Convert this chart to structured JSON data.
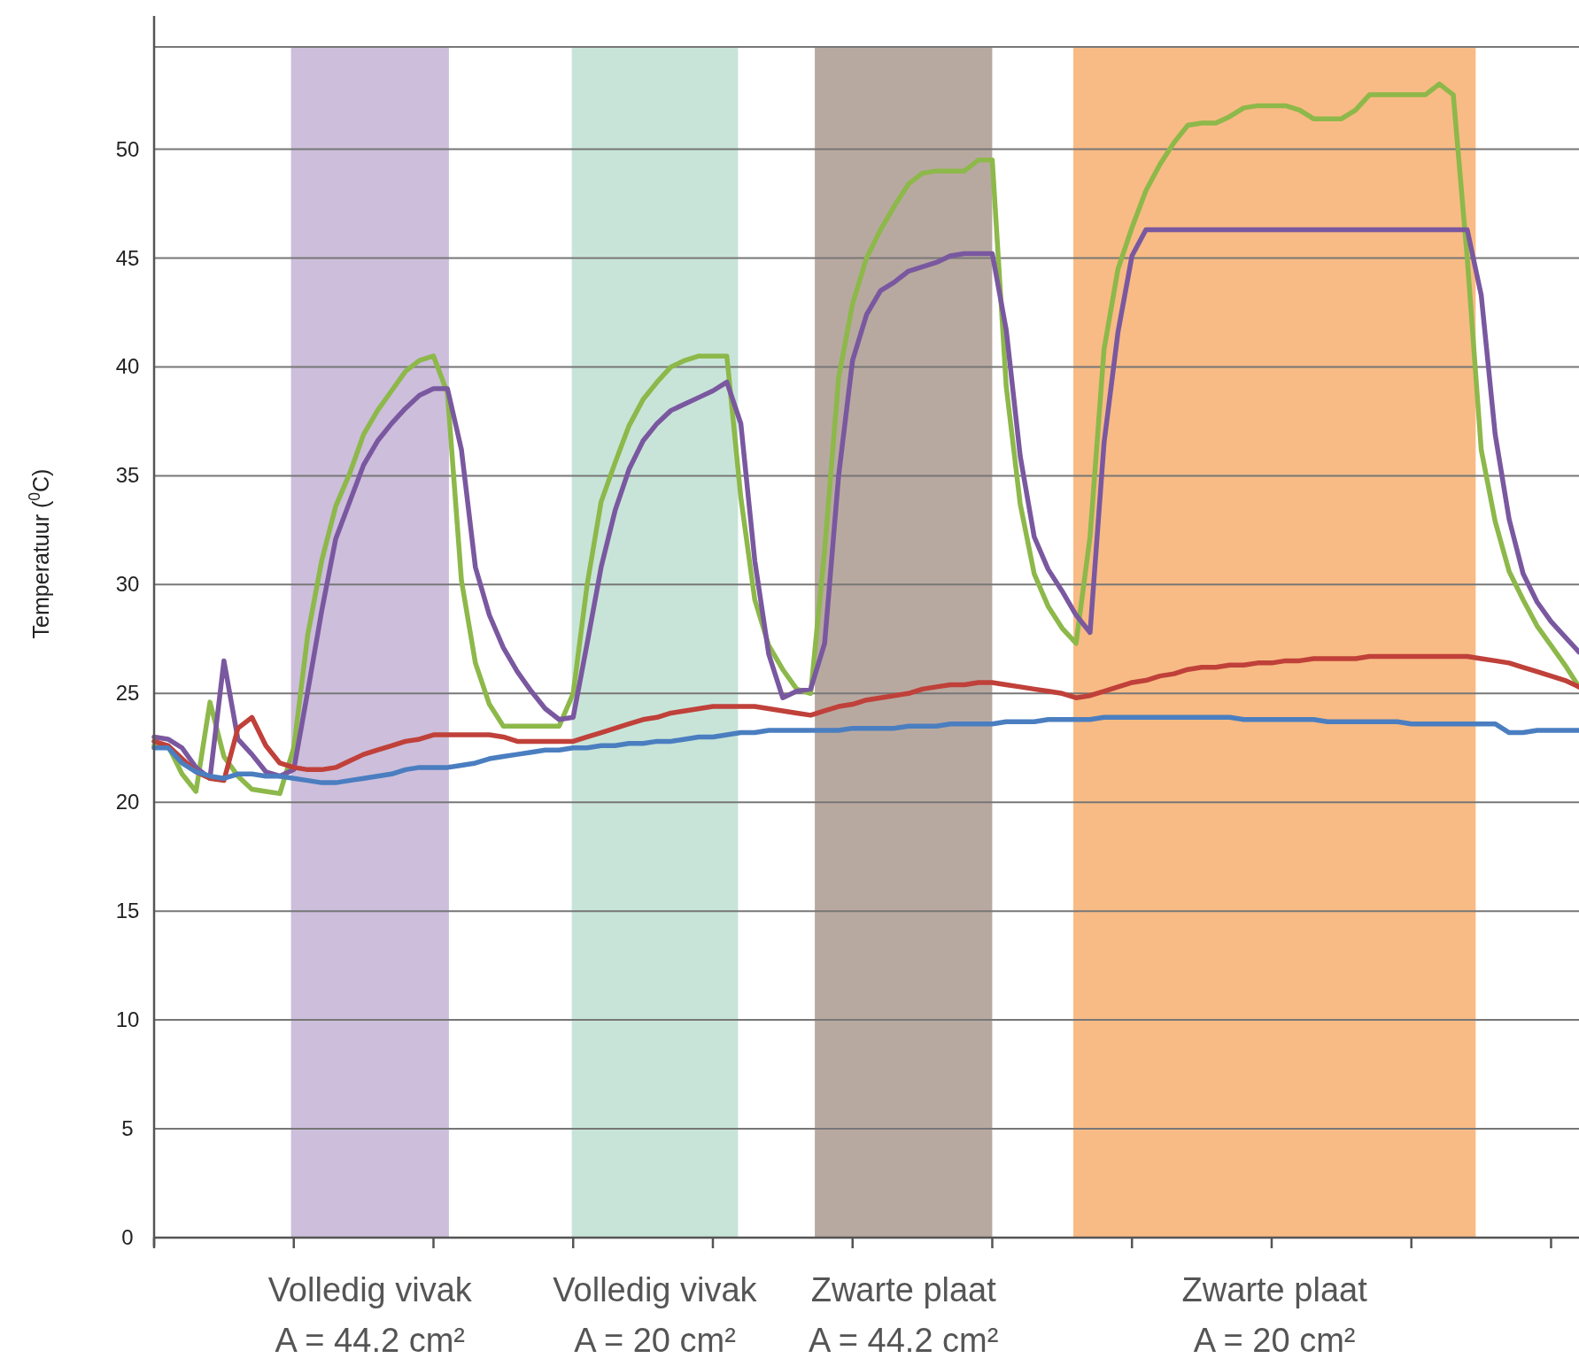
{
  "chart_data": {
    "type": "line",
    "ylabel": "Temperatuur ($^{0}$C)",
    "ylim": [
      0,
      54.7
    ],
    "categories": [
      null,
      null,
      null,
      null,
      null,
      null,
      null,
      null,
      null,
      null,
      null,
      null,
      null,
      null,
      null,
      null,
      null,
      null,
      null,
      null,
      null,
      null,
      null,
      null,
      null,
      null,
      null,
      null,
      null,
      null,
      null,
      null,
      null,
      null,
      null,
      null,
      null,
      null,
      null,
      null,
      null,
      null,
      null,
      null,
      null,
      null,
      null,
      null,
      null,
      null,
      null,
      null,
      null,
      null,
      null,
      null,
      null,
      null,
      null,
      null,
      null,
      null,
      null,
      null,
      null,
      null,
      null,
      null,
      null,
      null,
      null,
      null,
      null,
      null,
      null,
      null,
      null,
      null,
      null,
      null,
      null,
      null,
      null,
      null,
      null,
      null,
      null,
      null,
      null,
      null,
      null,
      null,
      null,
      null,
      null,
      null,
      null,
      null,
      null,
      null,
      null,
      null,
      null
    ],
    "yticks": [
      0,
      5,
      10,
      15,
      20,
      25,
      30,
      35,
      40,
      45,
      50,
      {
        "value": 54.7,
        "label": null
      }
    ],
    "grid": "y",
    "marker": "none",
    "line_style": "solid",
    "annotations": [
      "Volledig vivak\nA = 44.2 cm²",
      "Volledig vivak\nA = 20 cm²",
      "Zwarte plaat\nA = 44.2 cm²",
      "Zwarte plaat\nA = 20 cm²"
    ],
    "series": [
      {
        "color": "#8db84a",
        "values": [
          22.6,
          22.6,
          21.3,
          20.5,
          24.6,
          22.1,
          21.2,
          20.6,
          20.5,
          20.4,
          22.5,
          27.7,
          31.1,
          33.6,
          35.1,
          36.9,
          38.0,
          38.9,
          39.8,
          40.3,
          40.5,
          38.8,
          30.2,
          26.4,
          24.5,
          23.5,
          23.5,
          23.5,
          23.5,
          23.5,
          25.0,
          30.0,
          33.8,
          35.6,
          37.3,
          38.5,
          39.3,
          40.0,
          40.3,
          40.5,
          40.5,
          40.5,
          34.0,
          29.3,
          27.2,
          26.1,
          25.2,
          25.0,
          31.6,
          39.5,
          42.9,
          45.0,
          46.3,
          47.4,
          48.4,
          48.9,
          49.0,
          49.0,
          49.0,
          49.5,
          49.5,
          39.1,
          33.7,
          30.5,
          29.0,
          28.0,
          27.3,
          32.2,
          40.8,
          44.5,
          46.4,
          48.1,
          49.3,
          50.3,
          51.1,
          51.2,
          51.2,
          51.5,
          51.9,
          52.0,
          52.0,
          52.0,
          51.8,
          51.4,
          51.4,
          51.4,
          51.8,
          52.5,
          52.5,
          52.5,
          52.5,
          52.5,
          53.0,
          52.5,
          45.0,
          36.2,
          32.9,
          30.6,
          29.3,
          28.1,
          27.2,
          26.3,
          25.3
        ]
      },
      {
        "color": "#7a58a0",
        "values": [
          23.0,
          22.9,
          22.5,
          21.6,
          21.1,
          26.5,
          22.9,
          22.2,
          21.4,
          21.2,
          21.5,
          25.1,
          28.8,
          32.1,
          33.8,
          35.5,
          36.6,
          37.4,
          38.1,
          38.7,
          39.0,
          39.0,
          36.2,
          30.8,
          28.6,
          27.1,
          26.0,
          25.1,
          24.3,
          23.8,
          23.9,
          27.3,
          30.8,
          33.4,
          35.3,
          36.6,
          37.4,
          38.0,
          38.3,
          38.6,
          38.9,
          39.3,
          37.4,
          31.1,
          26.8,
          24.8,
          25.1,
          25.2,
          27.3,
          35.0,
          40.3,
          42.4,
          43.5,
          43.9,
          44.4,
          44.6,
          44.8,
          45.1,
          45.2,
          45.2,
          45.2,
          41.7,
          35.9,
          32.2,
          30.7,
          29.7,
          28.6,
          27.8,
          36.5,
          41.6,
          45.1,
          46.3,
          46.3,
          46.3,
          46.3,
          46.3,
          46.3,
          46.3,
          46.3,
          46.3,
          46.3,
          46.3,
          46.3,
          46.3,
          46.3,
          46.3,
          46.3,
          46.3,
          46.3,
          46.3,
          46.3,
          46.3,
          46.3,
          46.3,
          46.3,
          43.3,
          36.9,
          33.0,
          30.5,
          29.2,
          28.3,
          27.6,
          26.9
        ]
      },
      {
        "color": "#c0403a",
        "values": [
          22.8,
          22.6,
          22.0,
          21.4,
          21.1,
          21.0,
          23.4,
          23.9,
          22.6,
          21.8,
          21.6,
          21.5,
          21.5,
          21.6,
          21.9,
          22.2,
          22.4,
          22.6,
          22.8,
          22.9,
          23.1,
          23.1,
          23.1,
          23.1,
          23.1,
          23.0,
          22.8,
          22.8,
          22.8,
          22.8,
          22.8,
          23.0,
          23.2,
          23.4,
          23.6,
          23.8,
          23.9,
          24.1,
          24.2,
          24.3,
          24.4,
          24.4,
          24.4,
          24.4,
          24.3,
          24.2,
          24.1,
          24.0,
          24.2,
          24.4,
          24.5,
          24.7,
          24.8,
          24.9,
          25.0,
          25.2,
          25.3,
          25.4,
          25.4,
          25.5,
          25.5,
          25.4,
          25.3,
          25.2,
          25.1,
          25.0,
          24.8,
          24.9,
          25.1,
          25.3,
          25.5,
          25.6,
          25.8,
          25.9,
          26.1,
          26.2,
          26.2,
          26.3,
          26.3,
          26.4,
          26.4,
          26.5,
          26.5,
          26.6,
          26.6,
          26.6,
          26.6,
          26.7,
          26.7,
          26.7,
          26.7,
          26.7,
          26.7,
          26.7,
          26.7,
          26.6,
          26.5,
          26.4,
          26.2,
          26.0,
          25.8,
          25.6,
          25.3
        ]
      },
      {
        "color": "#4a7ec0",
        "values": [
          22.5,
          22.5,
          21.8,
          21.4,
          21.2,
          21.1,
          21.3,
          21.3,
          21.2,
          21.2,
          21.1,
          21.0,
          20.9,
          20.9,
          21.0,
          21.1,
          21.2,
          21.3,
          21.5,
          21.6,
          21.6,
          21.6,
          21.7,
          21.8,
          22.0,
          22.1,
          22.2,
          22.3,
          22.4,
          22.4,
          22.5,
          22.5,
          22.6,
          22.6,
          22.7,
          22.7,
          22.8,
          22.8,
          22.9,
          23.0,
          23.0,
          23.1,
          23.2,
          23.2,
          23.3,
          23.3,
          23.3,
          23.3,
          23.3,
          23.3,
          23.4,
          23.4,
          23.4,
          23.4,
          23.5,
          23.5,
          23.5,
          23.6,
          23.6,
          23.6,
          23.6,
          23.7,
          23.7,
          23.7,
          23.8,
          23.8,
          23.8,
          23.8,
          23.9,
          23.9,
          23.9,
          23.9,
          23.9,
          23.9,
          23.9,
          23.9,
          23.9,
          23.9,
          23.8,
          23.8,
          23.8,
          23.8,
          23.8,
          23.8,
          23.7,
          23.7,
          23.7,
          23.7,
          23.7,
          23.7,
          23.6,
          23.6,
          23.6,
          23.6,
          23.6,
          23.6,
          23.6,
          23.2,
          23.2,
          23.3,
          23.3,
          23.3,
          23.3
        ]
      }
    ]
  }
}
